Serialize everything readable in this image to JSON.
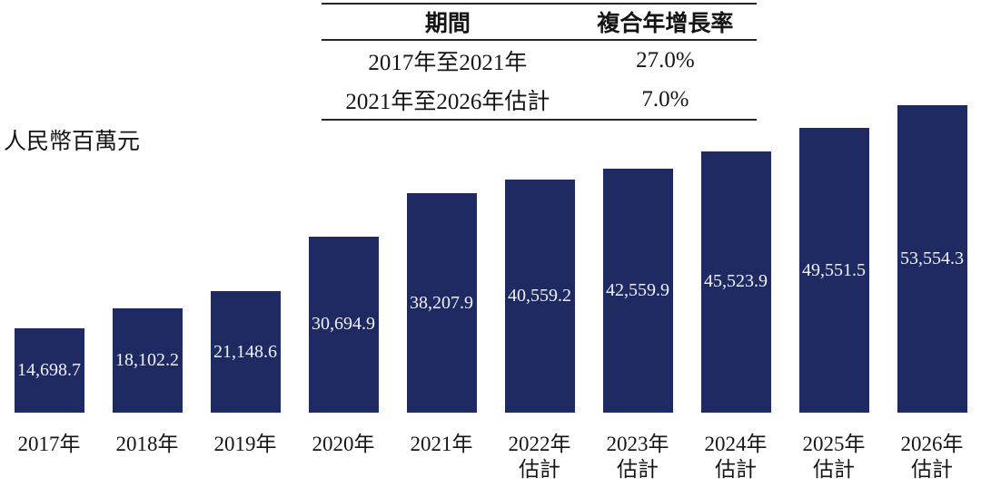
{
  "axis_label": "人民幣百萬元",
  "cagr_table": {
    "header": {
      "period": "期間",
      "cagr": "複合年增長率"
    },
    "rows": [
      {
        "period": "2017年至2021年",
        "cagr": "27.0%"
      },
      {
        "period": "2021年至2026年估計",
        "cagr": "7.0%"
      }
    ]
  },
  "chart_data": {
    "type": "bar",
    "title": "",
    "xlabel": "",
    "ylabel": "人民幣百萬元",
    "categories": [
      "2017年",
      "2018年",
      "2019年",
      "2020年",
      "2021年",
      "2022年",
      "2023年",
      "2024年",
      "2025年",
      "2026年"
    ],
    "category_suffix": [
      "",
      "",
      "",
      "",
      "",
      "估計",
      "估計",
      "估計",
      "估計",
      "估計"
    ],
    "values": [
      14698.7,
      18102.2,
      21148.6,
      30694.9,
      38207.9,
      40559.2,
      42559.9,
      45523.9,
      49551.5,
      53554.3
    ],
    "value_labels": [
      "14,698.7",
      "18,102.2",
      "21,148.6",
      "30,694.9",
      "38,207.9",
      "40,559.2",
      "42,559.9",
      "45,523.9",
      "49,551.5",
      "53,554.3"
    ],
    "ylim": [
      0,
      55000
    ],
    "grid": false,
    "legend": "none",
    "bar_color": "#1f2a63",
    "bar_label_color": "#f0f1f6"
  }
}
